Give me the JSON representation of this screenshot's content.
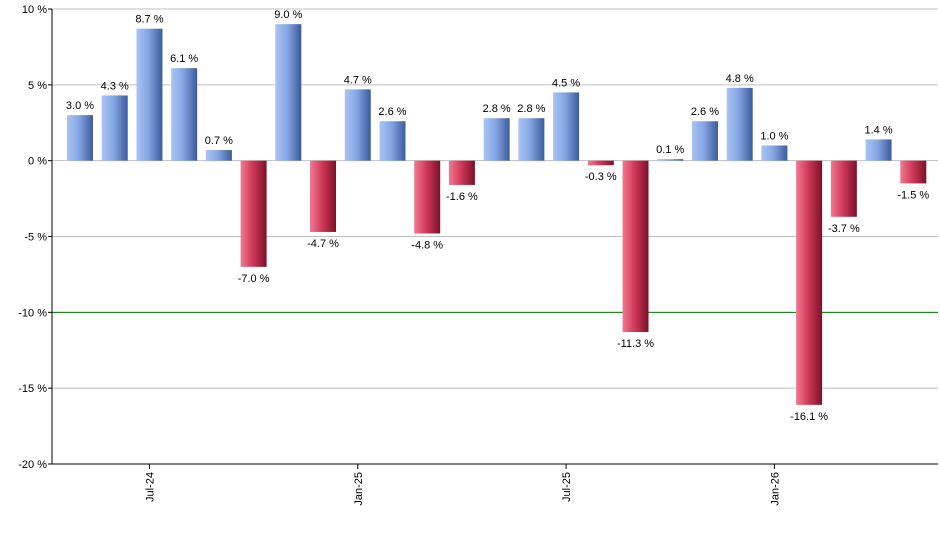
{
  "chart_data": {
    "type": "bar",
    "title": "",
    "xlabel": "",
    "ylabel": "",
    "ylim": [
      -20,
      10
    ],
    "y_ticks": [
      10,
      5,
      0,
      -5,
      -10,
      -15,
      -20
    ],
    "y_tick_format": "{v} %",
    "grid": true,
    "reference_line": {
      "value": -10,
      "color": "#008000"
    },
    "x_tick_labels": [
      {
        "index": 2,
        "label": "Jul-24"
      },
      {
        "index": 8,
        "label": "Jan-25"
      },
      {
        "index": 14,
        "label": "Jul-25"
      },
      {
        "index": 20,
        "label": "Jan-26"
      }
    ],
    "values": [
      3.0,
      4.3,
      8.7,
      6.1,
      0.7,
      -7.0,
      9.0,
      -4.7,
      4.7,
      2.6,
      -4.8,
      -1.6,
      2.8,
      2.8,
      4.5,
      -0.3,
      -11.3,
      0.1,
      2.6,
      4.8,
      1.0,
      -16.1,
      -3.7,
      1.4,
      -1.5
    ],
    "data_labels": [
      "3.0 %",
      "4.3 %",
      "8.7 %",
      "6.1 %",
      "0.7 %",
      "-7.0 %",
      "9.0 %",
      "-4.7 %",
      "4.7 %",
      "2.6 %",
      "-4.8 %",
      "-1.6 %",
      "2.8 %",
      "2.8 %",
      "4.5 %",
      "-0.3 %",
      "-11.3 %",
      "0.1 %",
      "2.6 %",
      "4.8 %",
      "1.0 %",
      "-16.1 %",
      "-3.7 %",
      "1.4 %",
      "-1.5 %"
    ],
    "colors": {
      "positive": "#6f93d6",
      "negative": "#c8284a",
      "grid": "#c0c0c0",
      "axis": "#000000"
    }
  }
}
